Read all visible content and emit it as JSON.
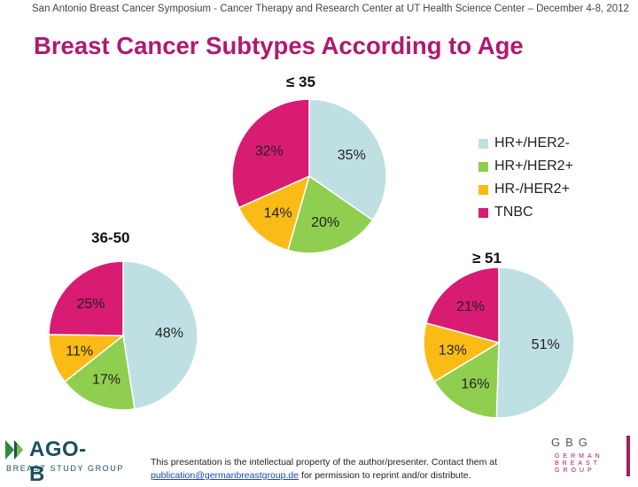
{
  "header": "San Antonio Breast Cancer Symposium - Cancer Therapy and Research Center at UT Health Science Center – December 4-8, 2012",
  "title": "Breast Cancer Subtypes According to Age",
  "colors": {
    "title": "#b01a6e",
    "HR+/HER2-": "#bfe0e2",
    "HR+/HER2+": "#8fce4f",
    "HR-/HER2+": "#fbbb17",
    "TNBC": "#d81b73"
  },
  "chart_data": {
    "type": "pie",
    "title": "Breast Cancer Subtypes According to Age",
    "legend": {
      "position": "right",
      "entries": [
        "HR+/HER2-",
        "HR+/HER2+",
        "HR-/HER2+",
        "TNBC"
      ]
    },
    "pies": [
      {
        "label": "≤ 35",
        "slices": [
          {
            "name": "HR+/HER2-",
            "value": 35,
            "label": "35%"
          },
          {
            "name": "HR+/HER2+",
            "value": 20,
            "label": "20%"
          },
          {
            "name": "HR-/HER2+",
            "value": 14,
            "label": "14%"
          },
          {
            "name": "TNBC",
            "value": 32,
            "label": "32%"
          }
        ]
      },
      {
        "label": "36-50",
        "slices": [
          {
            "name": "HR+/HER2-",
            "value": 48,
            "label": "48%"
          },
          {
            "name": "HR+/HER2+",
            "value": 17,
            "label": "17%"
          },
          {
            "name": "HR-/HER2+",
            "value": 11,
            "label": "11%"
          },
          {
            "name": "TNBC",
            "value": 25,
            "label": "25%"
          }
        ]
      },
      {
        "label": "≥ 51",
        "slices": [
          {
            "name": "HR+/HER2-",
            "value": 51,
            "label": "51%"
          },
          {
            "name": "HR+/HER2+",
            "value": 16,
            "label": "16%"
          },
          {
            "name": "HR-/HER2+",
            "value": 13,
            "label": "13%"
          },
          {
            "name": "TNBC",
            "value": 21,
            "label": "21%"
          }
        ]
      }
    ]
  },
  "footer": {
    "logo_left": "AGO-B",
    "logo_left_sub": "BREAST STUDY GROUP",
    "notice_line1": "This presentation is the intellectual property of the author/presenter. Contact them at",
    "notice_link": "publication@germanbreastgroup.de",
    "notice_line2_rest": " for permission to reprint and/or distribute.",
    "logo_right": "GBG",
    "logo_right_lines": [
      "GERMAN",
      "BREAST",
      "GROUP"
    ]
  }
}
